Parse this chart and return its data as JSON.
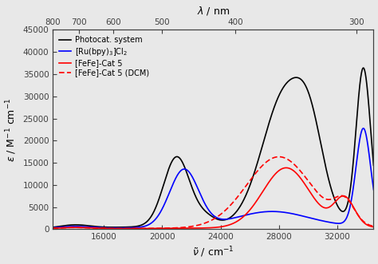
{
  "xlabel_bottom": "$\\tilde{\\nu}$ / cm$^{-1}$",
  "xlabel_top": "$\\lambda$ / nm",
  "ylabel": "$\\varepsilon$ / M$^{-1}$ cm$^{-1}$",
  "xlim_wn": [
    12500,
    34500
  ],
  "ylim": [
    0,
    45000
  ],
  "yticks": [
    0,
    5000,
    10000,
    15000,
    20000,
    25000,
    30000,
    35000,
    40000,
    45000
  ],
  "xticks_bottom": [
    16000,
    20000,
    24000,
    28000,
    32000
  ],
  "xtick_labels": [
    "16000",
    "20000",
    "24000",
    "28000",
    "32000"
  ],
  "nm_ticks": [
    800,
    700,
    600,
    500,
    400,
    300
  ],
  "legend_entries": [
    {
      "label": "Photocat. system",
      "color": "black",
      "linestyle": "solid"
    },
    {
      "label": "[Ru(bpy)$_3$]Cl$_2$",
      "color": "blue",
      "linestyle": "solid"
    },
    {
      "label": "[FeFe]-Cat 5",
      "color": "red",
      "linestyle": "solid"
    },
    {
      "label": "[FeFe]-Cat 5 (DCM)",
      "color": "red",
      "linestyle": "dashed"
    }
  ],
  "background_color": "#e8e8e8",
  "linewidth": 1.2,
  "legend_fontsize": 7.0,
  "tick_fontsize": 7.5,
  "label_fontsize": 9.0
}
